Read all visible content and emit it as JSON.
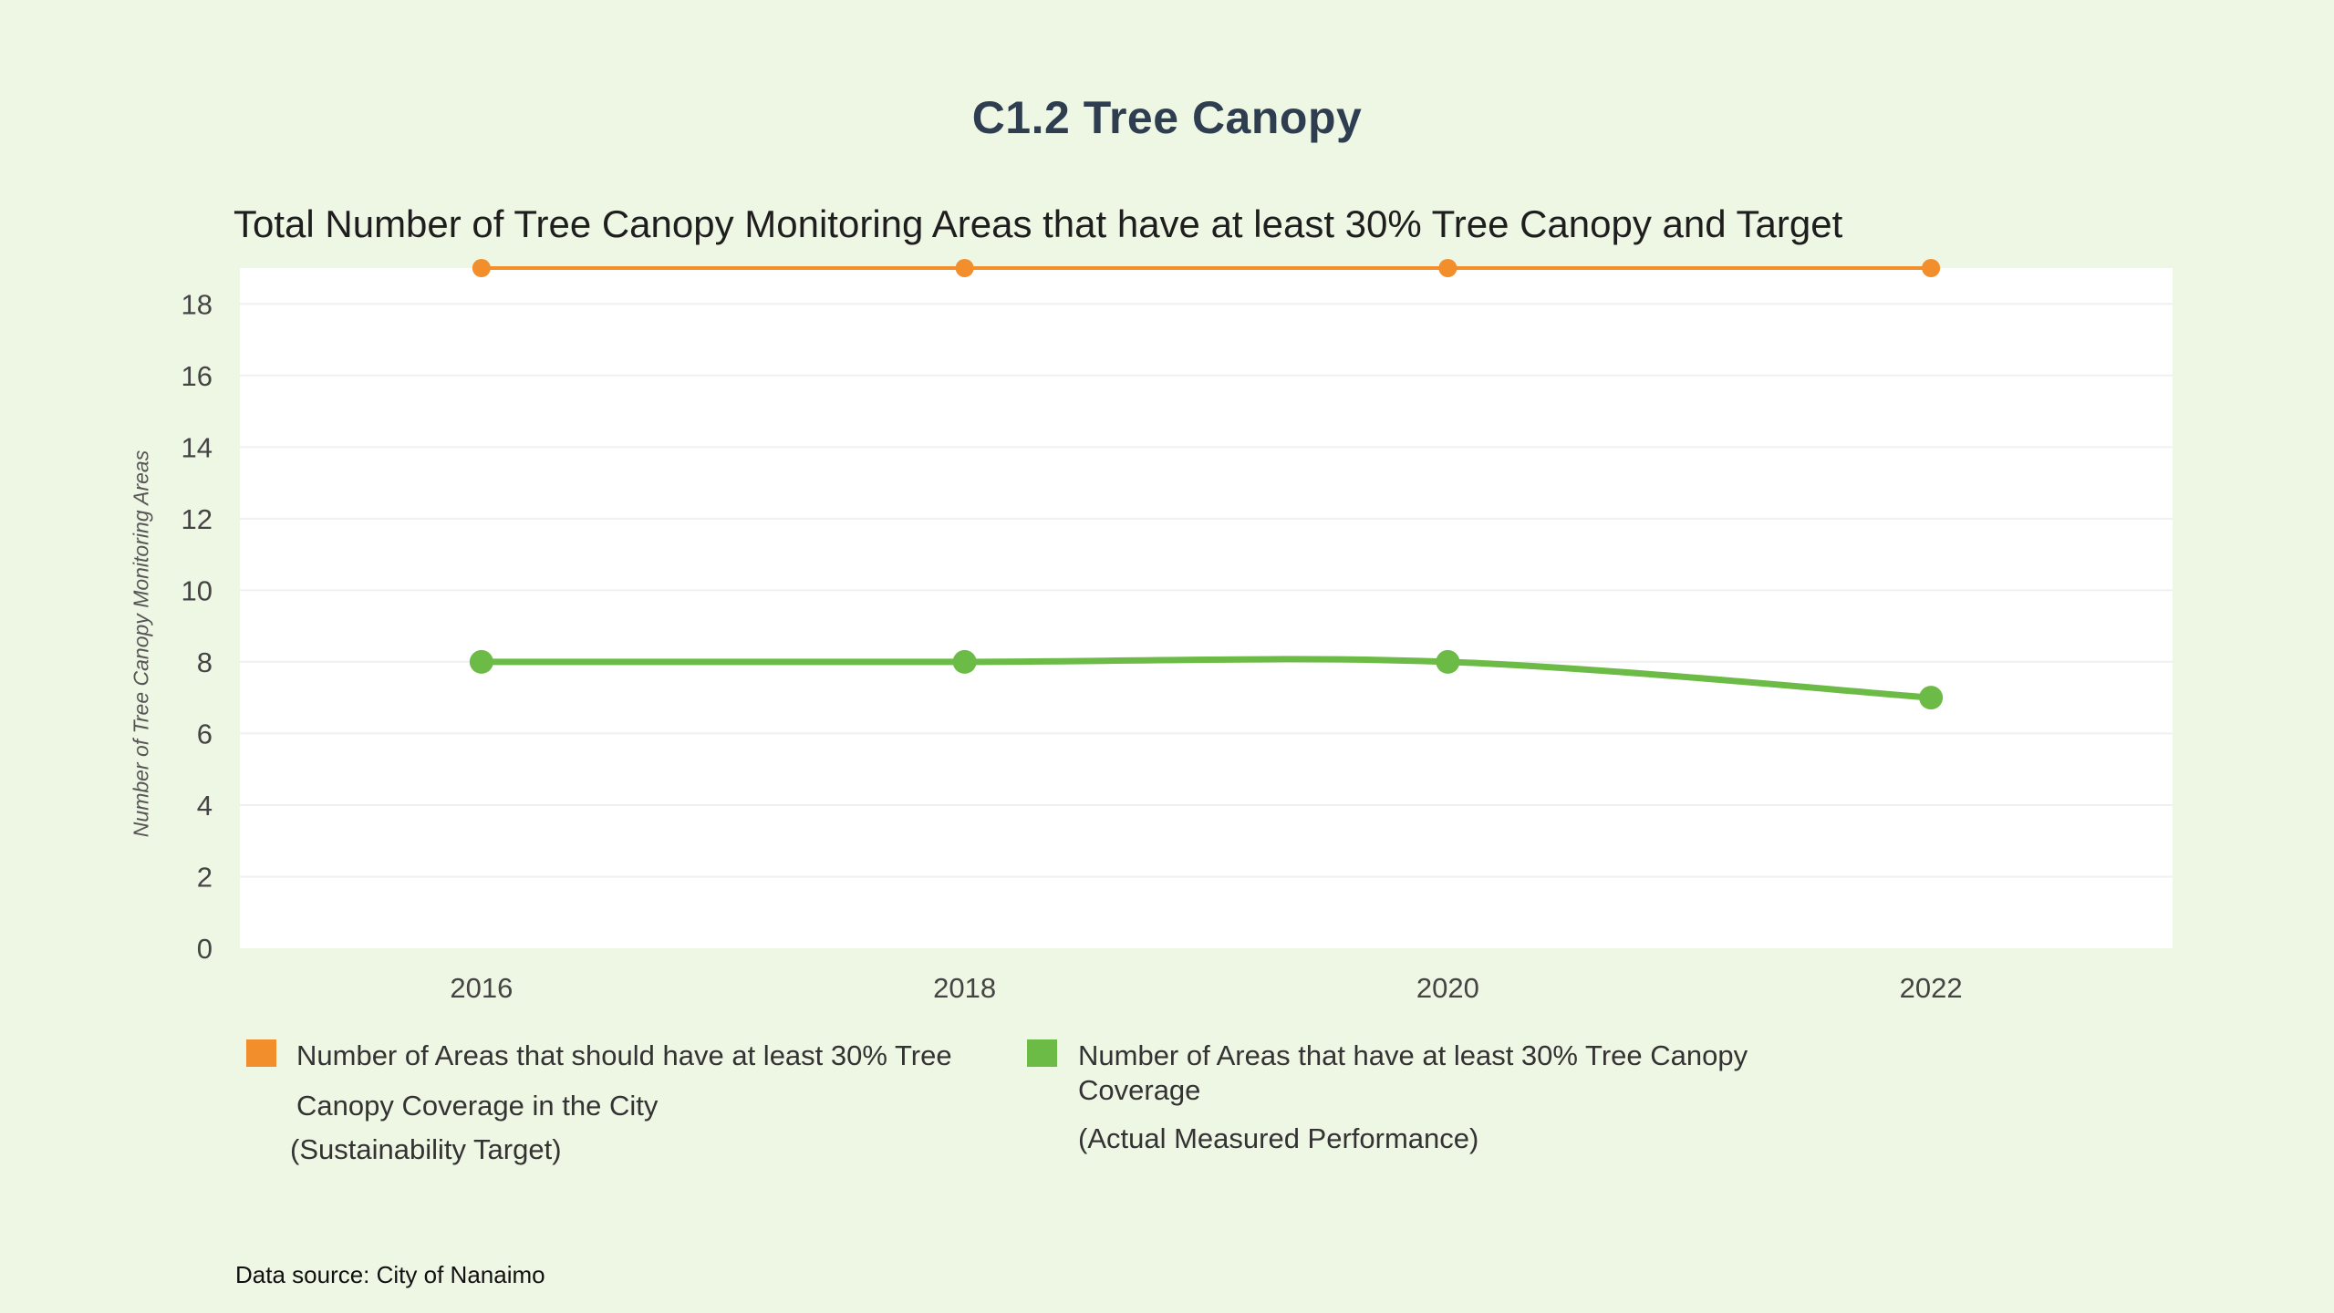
{
  "page": {
    "title": "C1.2 Tree Canopy",
    "source": "Data source: City of Nanaimo"
  },
  "colors": {
    "background": "#eef6e4",
    "plot_background": "#ffffff",
    "target": "#f28e2b",
    "actual": "#6cbb46"
  },
  "chart_data": {
    "type": "line",
    "title": "Total Number of Tree Canopy Monitoring Areas that have at least 30% Tree Canopy and Target",
    "xlabel": "",
    "ylabel": "Number of Tree Canopy Monitoring Areas",
    "x": [
      2016,
      2018,
      2020,
      2022
    ],
    "x_tick_labels": [
      "2016",
      "2018",
      "2020",
      "2022"
    ],
    "xlim": [
      2015,
      2023
    ],
    "ylim": [
      0,
      19
    ],
    "y_ticks": [
      0,
      2,
      4,
      6,
      8,
      10,
      12,
      14,
      16,
      18
    ],
    "grid": true,
    "legend_position": "bottom",
    "series": [
      {
        "name": "Number of Areas that should have at least 30% Tree Canopy Coverage in the City",
        "note": "(Sustainability Target)",
        "values": [
          19,
          19,
          19,
          19
        ],
        "color": "#f28e2b"
      },
      {
        "name": "Number of Areas that have at least 30% Tree Canopy Coverage",
        "note": "(Actual Measured Performance)",
        "values": [
          8,
          8,
          8,
          7
        ],
        "color": "#6cbb46"
      }
    ],
    "legend": {
      "target_line1": "Number of Areas that should have at least 30% Tree",
      "target_line2": "Canopy Coverage in the City",
      "target_line3": "(Sustainability Target)",
      "actual_line1": "Number of Areas that have at least 30% Tree Canopy",
      "actual_line2": "Coverage",
      "actual_line3": "(Actual Measured Performance)"
    }
  }
}
